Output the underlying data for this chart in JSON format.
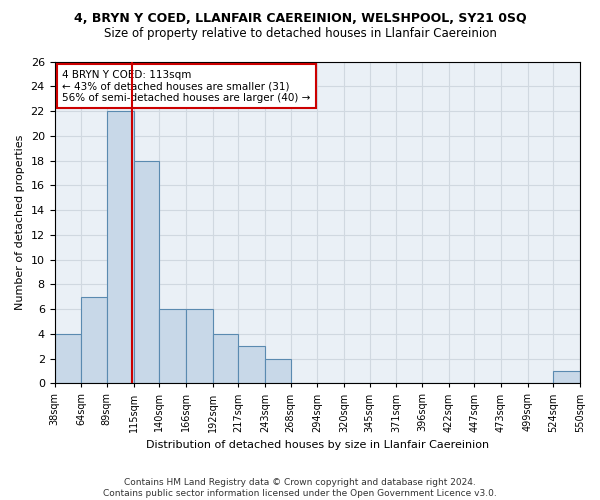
{
  "title1": "4, BRYN Y COED, LLANFAIR CAEREINION, WELSHPOOL, SY21 0SQ",
  "title2": "Size of property relative to detached houses in Llanfair Caereinion",
  "xlabel": "Distribution of detached houses by size in Llanfair Caereinion",
  "ylabel": "Number of detached properties",
  "footer": "Contains HM Land Registry data © Crown copyright and database right 2024.\nContains public sector information licensed under the Open Government Licence v3.0.",
  "bin_labels": [
    "38sqm",
    "64sqm",
    "89sqm",
    "115sqm",
    "140sqm",
    "166sqm",
    "192sqm",
    "217sqm",
    "243sqm",
    "268sqm",
    "294sqm",
    "320sqm",
    "345sqm",
    "371sqm",
    "396sqm",
    "422sqm",
    "447sqm",
    "473sqm",
    "499sqm",
    "524sqm",
    "550sqm"
  ],
  "bin_edges": [
    38,
    64,
    89,
    115,
    140,
    166,
    192,
    217,
    243,
    268,
    294,
    320,
    345,
    371,
    396,
    422,
    447,
    473,
    499,
    524,
    550
  ],
  "counts": [
    4,
    7,
    22,
    18,
    6,
    6,
    4,
    3,
    2,
    0,
    0,
    0,
    0,
    0,
    0,
    0,
    0,
    0,
    0,
    1
  ],
  "bar_color": "#c8d8e8",
  "bar_edge_color": "#5a8ab0",
  "vline_x": 113,
  "annotation_title": "4 BRYN Y COED: 113sqm",
  "annotation_line1": "← 43% of detached houses are smaller (31)",
  "annotation_line2": "56% of semi-detached houses are larger (40) →",
  "annotation_box_color": "#ffffff",
  "annotation_box_edge": "#cc0000",
  "vline_color": "#cc0000",
  "ylim": [
    0,
    26
  ],
  "yticks": [
    0,
    2,
    4,
    6,
    8,
    10,
    12,
    14,
    16,
    18,
    20,
    22,
    24,
    26
  ],
  "grid_color": "#d0d8e0",
  "background_color": "#eaf0f6"
}
